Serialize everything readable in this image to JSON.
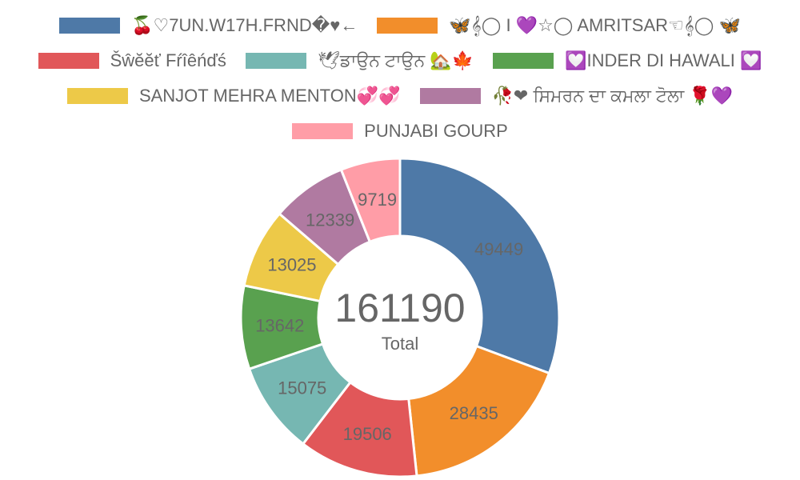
{
  "chart_data": {
    "type": "pie",
    "variant": "doughnut",
    "categories": [
      "🍒♡7UN.W17H.FRND�♥←",
      "🦋𝄞◯ I 💜☆◯ AMRITSAR☜𝄞◯ 🦋",
      "Šŵĕĕť Fŕîêńďś",
      "🕊ਡਾਉਨ ਟਾਉਨ 🏡🍁",
      "💟INDER DI HAWALI 💟",
      "SANJOT MEHRA MENTON💞💞",
      "🥀❤ ਸਿਮਰਨ ਦਾ ਕਮਲਾ ਟੋਲਾ 🌹💜",
      "PUNJABI GOURP"
    ],
    "values": [
      49449,
      28435,
      19506,
      15075,
      13642,
      13025,
      12339,
      9719
    ],
    "colors": [
      "#4e79a7",
      "#f28e2b",
      "#e15759",
      "#76b7b2",
      "#59a14f",
      "#edc948",
      "#b07aa1",
      "#ff9da7"
    ],
    "total": 161190,
    "total_label": "Total",
    "legend_position": "top"
  }
}
